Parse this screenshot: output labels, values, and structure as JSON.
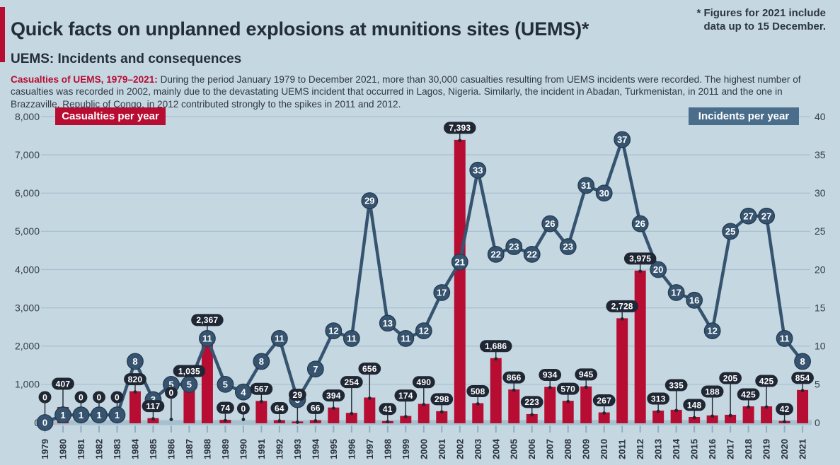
{
  "header": {
    "title": "Quick facts on unplanned explosions at munitions sites (UEMS)*",
    "subtitle": "UEMS: Incidents and consequences",
    "note": "* Figures for 2021 include\ndata up to 15 December.",
    "intro_lead": "Casualties of UEMS, 1979–2021:",
    "intro_text": " During the period January 1979 to December 2021, more than 30,000 casualties resulting from UEMS incidents were recorded. The highest number of casualties was recorded in 2002, mainly due to the devastating UEMS incident that occurred in Lagos, Nigeria. Similarly, the incident in Abadan, Turkmenistan, in 2011 and the one in Brazzaville, Republic of Congo, in 2012 contributed strongly to the spikes in 2011 and 2012."
  },
  "legend": {
    "casualties_label": "Casualties per year",
    "incidents_label": "Incidents per year"
  },
  "colors": {
    "background": "#c5d7e1",
    "bar": "#b70d33",
    "line": "#36546f",
    "circle_fill": "#36546f",
    "circle_stroke": "#22384c",
    "pill": "#1f2734",
    "grid": "#a6c1d1",
    "baseline_band": "#a6c0ce",
    "tick": "#8fafc2",
    "axis_text": "#333e4b",
    "year_text": "#2b3441",
    "label_text": "#ffffff"
  },
  "chart_data": {
    "type": "bar+line combo",
    "categories": [
      1979,
      1980,
      1981,
      1982,
      1983,
      1984,
      1985,
      1986,
      1987,
      1988,
      1989,
      1990,
      1991,
      1992,
      1993,
      1994,
      1995,
      1996,
      1997,
      1998,
      1999,
      2000,
      2001,
      2002,
      2003,
      2004,
      2005,
      2006,
      2007,
      2008,
      2009,
      2010,
      2011,
      2012,
      2013,
      2014,
      2015,
      2016,
      2017,
      2018,
      2019,
      2020,
      2021
    ],
    "series": [
      {
        "name": "Casualties per year",
        "type": "bar",
        "axis": "left",
        "color": "#b70d33",
        "values": [
          0,
          407,
          0,
          0,
          0,
          820,
          117,
          0,
          1035,
          2367,
          74,
          0,
          567,
          64,
          29,
          66,
          394,
          254,
          656,
          41,
          174,
          490,
          298,
          7393,
          508,
          1686,
          866,
          223,
          934,
          570,
          945,
          267,
          2728,
          3975,
          313,
          335,
          148,
          188,
          205,
          425,
          425,
          42,
          854
        ],
        "labels": [
          "0",
          "407",
          "0",
          "0",
          "0",
          "820",
          "117",
          "0",
          "1,035",
          "2,367",
          "74",
          "0",
          "567",
          "64",
          "29",
          "66",
          "394",
          "254",
          "656",
          "41",
          "174",
          "490",
          "298",
          "7,393",
          "508",
          "1,686",
          "866",
          "223",
          "934",
          "570",
          "945",
          "267",
          "2,728",
          "3,975",
          "313",
          "335",
          "148",
          "188",
          "205",
          "425",
          "425",
          "42",
          "854"
        ]
      },
      {
        "name": "Incidents per year",
        "type": "line",
        "axis": "right",
        "color": "#36546f",
        "values": [
          0,
          1,
          1,
          1,
          1,
          8,
          3,
          5,
          5,
          11,
          5,
          4,
          8,
          11,
          3,
          7,
          12,
          11,
          29,
          13,
          11,
          12,
          17,
          21,
          33,
          22,
          23,
          22,
          26,
          23,
          31,
          30,
          37,
          26,
          20,
          17,
          16,
          12,
          25,
          27,
          27,
          11,
          8
        ]
      }
    ],
    "left_axis": {
      "ticks": [
        "8,000",
        "7,000",
        "6,000",
        "5,000",
        "4,000",
        "3,000",
        "2,000",
        "1,000",
        "0"
      ],
      "range": [
        0,
        8000
      ]
    },
    "right_axis": {
      "ticks": [
        "40",
        "35",
        "30",
        "25",
        "20",
        "15",
        "10",
        "5",
        "0"
      ],
      "range": [
        0,
        40
      ]
    },
    "grid": true,
    "legend_position": "top"
  }
}
